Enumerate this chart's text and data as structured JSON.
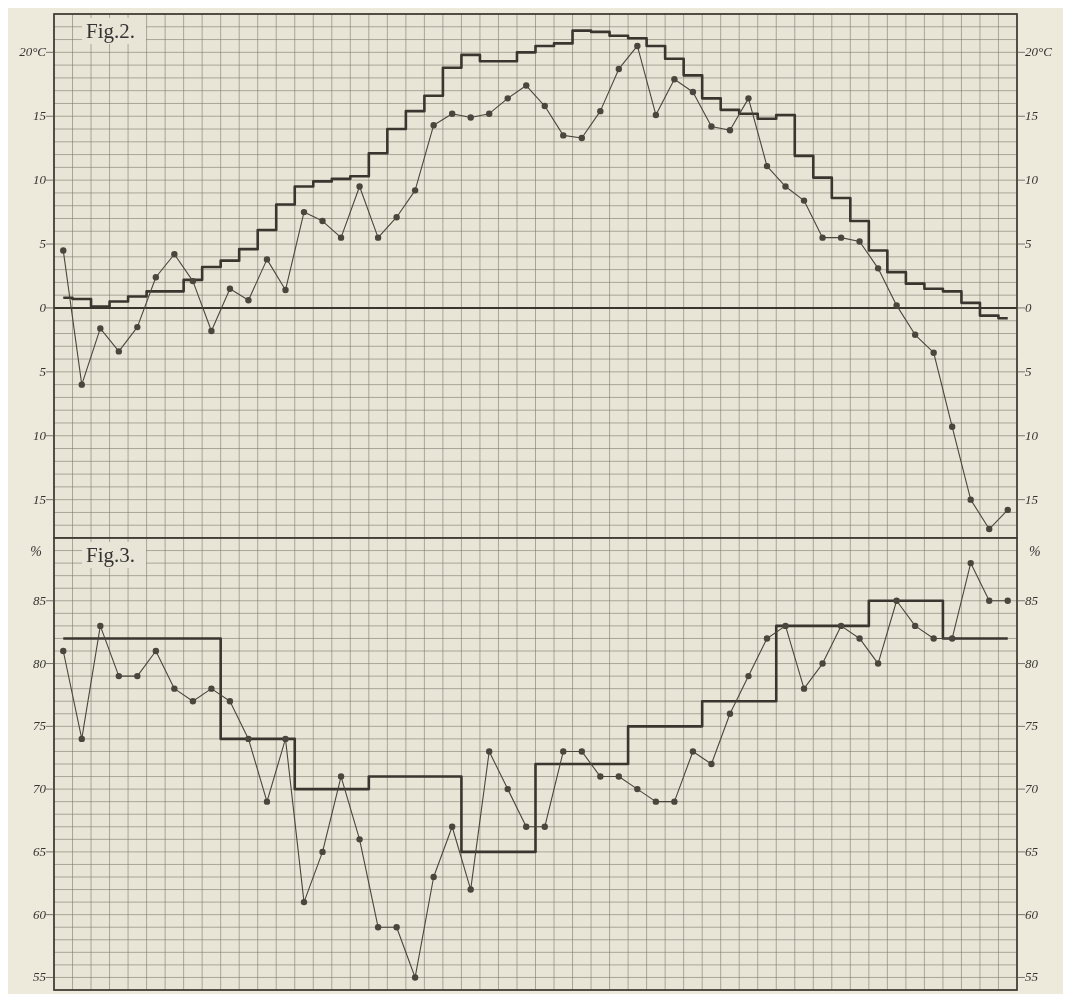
{
  "chart_data": [
    {
      "type": "line",
      "title": "Fig.2.",
      "categories": [
        null,
        null,
        null,
        null,
        null,
        null,
        null,
        null,
        null,
        null,
        null,
        null,
        null,
        null,
        null,
        null,
        null,
        null,
        null,
        null,
        null,
        null,
        null,
        null,
        null,
        null,
        null,
        null,
        null,
        null,
        null,
        null,
        null,
        null,
        null,
        null,
        null,
        null,
        null,
        null,
        null,
        null,
        null,
        null,
        null,
        null,
        null,
        null,
        null,
        null,
        null,
        null
      ],
      "ylim": [
        -18,
        23
      ],
      "yticks": [
        {
          "value": -15,
          "label": "15"
        },
        {
          "value": -10,
          "label": "10"
        },
        {
          "value": -5,
          "label": "5"
        },
        0,
        5,
        10,
        15,
        {
          "value": 20,
          "label": "20°C"
        }
      ],
      "y2lim": [
        -18,
        23
      ],
      "y2ticks": [
        {
          "value": -15,
          "label": "15"
        },
        {
          "value": -10,
          "label": "10"
        },
        {
          "value": -5,
          "label": "5"
        },
        0,
        5,
        10,
        15,
        {
          "value": 20,
          "label": "20°C"
        }
      ],
      "tick_labels": "y",
      "grid": true,
      "ref_lines": [
        {
          "axis": "y",
          "value": 0,
          "color": "#3a362f"
        }
      ],
      "series": [
        {
          "type": "step",
          "color": "#3a362f",
          "values": [
            0.8,
            0.7,
            0.1,
            0.5,
            0.9,
            1.3,
            1.3,
            2.2,
            3.2,
            3.7,
            4.6,
            6.1,
            8.1,
            9.5,
            9.9,
            10.1,
            10.3,
            12.1,
            14.0,
            15.4,
            16.6,
            18.8,
            19.8,
            19.3,
            19.3,
            20.0,
            20.5,
            20.7,
            21.7,
            21.6,
            21.3,
            21.1,
            20.5,
            19.5,
            18.2,
            16.4,
            15.5,
            15.2,
            14.8,
            15.1,
            11.9,
            10.2,
            8.6,
            6.8,
            4.5,
            2.8,
            1.9,
            1.5,
            1.3,
            0.4,
            -0.6,
            -0.8
          ]
        },
        {
          "color": "#4a463e",
          "marker": "circle",
          "values": [
            4.5,
            -6.0,
            -1.6,
            -3.4,
            -1.5,
            2.4,
            4.2,
            2.1,
            -1.8,
            1.5,
            0.6,
            3.8,
            1.4,
            7.5,
            6.8,
            5.5,
            9.5,
            5.5,
            7.1,
            9.2,
            14.3,
            15.2,
            14.9,
            15.2,
            16.4,
            17.4,
            15.8,
            13.5,
            13.3,
            15.4,
            18.7,
            20.5,
            15.1,
            17.9,
            16.9,
            14.2,
            13.9,
            16.4,
            11.1,
            9.5,
            8.4,
            5.5,
            5.5,
            5.2,
            3.1,
            0.2,
            -2.1,
            -3.5,
            -9.3,
            -15.0,
            -17.3,
            -15.8
          ]
        }
      ]
    },
    {
      "type": "line",
      "title": "Fig.3.",
      "ylabel": "%",
      "y2label": "%",
      "categories": [
        null,
        null,
        null,
        null,
        null,
        null,
        null,
        null,
        null,
        null,
        null,
        null,
        null,
        null,
        null,
        null,
        null,
        null,
        null,
        null,
        null,
        null,
        null,
        null,
        null,
        null,
        null,
        null,
        null,
        null,
        null,
        null,
        null,
        null,
        null,
        null,
        null,
        null,
        null,
        null,
        null,
        null,
        null,
        null,
        null,
        null,
        null,
        null,
        null,
        null,
        null,
        null
      ],
      "ylim": [
        54,
        90
      ],
      "yticks": [
        55,
        60,
        65,
        70,
        75,
        80,
        85
      ],
      "y2lim": [
        54,
        90
      ],
      "y2ticks": [
        55,
        60,
        65,
        70,
        75,
        80,
        85
      ],
      "tick_labels": "y",
      "grid": true,
      "series": [
        {
          "type": "step",
          "color": "#3a362f",
          "values": [
            82,
            82,
            82,
            82,
            82,
            82,
            82,
            82,
            82,
            74,
            74,
            74,
            74,
            70,
            70,
            70,
            70,
            71,
            71,
            71,
            71,
            71,
            65,
            65,
            65,
            65,
            72,
            72,
            72,
            72,
            72,
            75,
            75,
            75,
            75,
            77,
            77,
            77,
            77,
            83,
            83,
            83,
            83,
            83,
            85,
            85,
            85,
            85,
            82,
            82,
            82,
            82
          ]
        },
        {
          "color": "#4a463e",
          "marker": "circle",
          "values": [
            81,
            74,
            83,
            79,
            79,
            81,
            78,
            77,
            78,
            77,
            74,
            69,
            74,
            61,
            65,
            71,
            66,
            59,
            59,
            55,
            63,
            67,
            62,
            73,
            70,
            67,
            67,
            73,
            73,
            71,
            71,
            70,
            69,
            69,
            73,
            72,
            76,
            79,
            82,
            83,
            78,
            80,
            83,
            82,
            80,
            85,
            83,
            82,
            82,
            88,
            85,
            85
          ]
        }
      ]
    }
  ]
}
